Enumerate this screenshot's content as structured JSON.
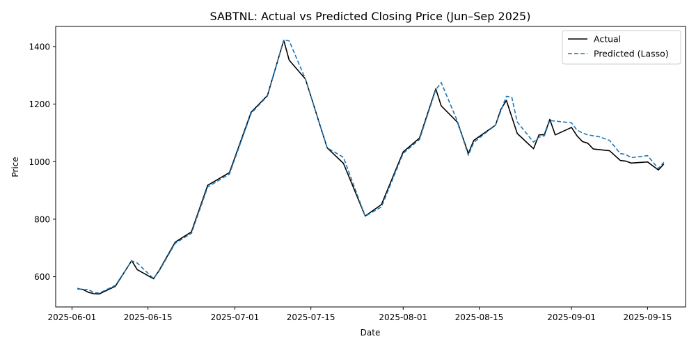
{
  "chart_data": {
    "type": "line",
    "title": "SABTNL: Actual vs Predicted Closing Price (Jun–Sep 2025)",
    "xlabel": "Date",
    "ylabel": "Price",
    "xlim": [
      "2025-05-29",
      "2025-09-22"
    ],
    "ylim": [
      495,
      1470
    ],
    "x_ticks": [
      "2025-06-01",
      "2025-06-15",
      "2025-07-01",
      "2025-07-15",
      "2025-08-01",
      "2025-08-15",
      "2025-09-01",
      "2025-09-15"
    ],
    "y_ticks": [
      600,
      800,
      1000,
      1200,
      1400
    ],
    "grid": false,
    "legend_position": "top-right",
    "series": [
      {
        "name": "Actual",
        "color": "#000000",
        "style": "solid",
        "points": [
          [
            "2025-06-02",
            558
          ],
          [
            "2025-06-03",
            556
          ],
          [
            "2025-06-04",
            546
          ],
          [
            "2025-06-05",
            541
          ],
          [
            "2025-06-06",
            540
          ],
          [
            "2025-06-09",
            567
          ],
          [
            "2025-06-12",
            656
          ],
          [
            "2025-06-13",
            625
          ],
          [
            "2025-06-16",
            593
          ],
          [
            "2025-06-17",
            620
          ],
          [
            "2025-06-20",
            720
          ],
          [
            "2025-06-23",
            756
          ],
          [
            "2025-06-26",
            918
          ],
          [
            "2025-06-30",
            962
          ],
          [
            "2025-07-04",
            1172
          ],
          [
            "2025-07-07",
            1230
          ],
          [
            "2025-07-10",
            1422
          ],
          [
            "2025-07-11",
            1353
          ],
          [
            "2025-07-14",
            1287
          ],
          [
            "2025-07-18",
            1048
          ],
          [
            "2025-07-21",
            994
          ],
          [
            "2025-07-25",
            811
          ],
          [
            "2025-07-28",
            851
          ],
          [
            "2025-08-01",
            1034
          ],
          [
            "2025-08-04",
            1082
          ],
          [
            "2025-08-07",
            1253
          ],
          [
            "2025-08-08",
            1194
          ],
          [
            "2025-08-11",
            1137
          ],
          [
            "2025-08-13",
            1028
          ],
          [
            "2025-08-14",
            1074
          ],
          [
            "2025-08-18",
            1127
          ],
          [
            "2025-08-19",
            1182
          ],
          [
            "2025-08-20",
            1213
          ],
          [
            "2025-08-22",
            1098
          ],
          [
            "2025-08-25",
            1045
          ],
          [
            "2025-08-26",
            1093
          ],
          [
            "2025-08-27",
            1094
          ],
          [
            "2025-08-28",
            1147
          ],
          [
            "2025-08-29",
            1093
          ],
          [
            "2025-09-01",
            1119
          ],
          [
            "2025-09-02",
            1090
          ],
          [
            "2025-09-03",
            1070
          ],
          [
            "2025-09-04",
            1064
          ],
          [
            "2025-09-05",
            1044
          ],
          [
            "2025-09-08",
            1038
          ],
          [
            "2025-09-10",
            1004
          ],
          [
            "2025-09-11",
            1002
          ],
          [
            "2025-09-12",
            995
          ],
          [
            "2025-09-15",
            999
          ],
          [
            "2025-09-17",
            971
          ],
          [
            "2025-09-18",
            992
          ]
        ]
      },
      {
        "name": "Predicted (Lasso)",
        "color": "#1f77b4",
        "style": "dashed",
        "points": [
          [
            "2025-06-02",
            560
          ],
          [
            "2025-06-03",
            555
          ],
          [
            "2025-06-04",
            556
          ],
          [
            "2025-06-05",
            545
          ],
          [
            "2025-06-06",
            543
          ],
          [
            "2025-06-09",
            570
          ],
          [
            "2025-06-12",
            655
          ],
          [
            "2025-06-13",
            648
          ],
          [
            "2025-06-16",
            594
          ],
          [
            "2025-06-17",
            618
          ],
          [
            "2025-06-20",
            716
          ],
          [
            "2025-06-23",
            751
          ],
          [
            "2025-06-26",
            912
          ],
          [
            "2025-06-30",
            957
          ],
          [
            "2025-07-04",
            1168
          ],
          [
            "2025-07-07",
            1228
          ],
          [
            "2025-07-10",
            1423
          ],
          [
            "2025-07-11",
            1420
          ],
          [
            "2025-07-14",
            1287
          ],
          [
            "2025-07-18",
            1048
          ],
          [
            "2025-07-21",
            1015
          ],
          [
            "2025-07-25",
            810
          ],
          [
            "2025-07-28",
            843
          ],
          [
            "2025-08-01",
            1029
          ],
          [
            "2025-08-04",
            1077
          ],
          [
            "2025-08-07",
            1250
          ],
          [
            "2025-08-08",
            1275
          ],
          [
            "2025-08-11",
            1140
          ],
          [
            "2025-08-13",
            1022
          ],
          [
            "2025-08-14",
            1067
          ],
          [
            "2025-08-18",
            1127
          ],
          [
            "2025-08-19",
            1177
          ],
          [
            "2025-08-20",
            1227
          ],
          [
            "2025-08-21",
            1224
          ],
          [
            "2025-08-22",
            1138
          ],
          [
            "2025-08-25",
            1068
          ],
          [
            "2025-08-26",
            1085
          ],
          [
            "2025-08-27",
            1090
          ],
          [
            "2025-08-28",
            1143
          ],
          [
            "2025-09-01",
            1135
          ],
          [
            "2025-09-02",
            1110
          ],
          [
            "2025-09-03",
            1100
          ],
          [
            "2025-09-04",
            1093
          ],
          [
            "2025-09-06",
            1087
          ],
          [
            "2025-09-08",
            1074
          ],
          [
            "2025-09-10",
            1028
          ],
          [
            "2025-09-11",
            1025
          ],
          [
            "2025-09-12",
            1014
          ],
          [
            "2025-09-15",
            1021
          ],
          [
            "2025-09-17",
            976
          ],
          [
            "2025-09-18",
            998
          ]
        ]
      }
    ]
  }
}
